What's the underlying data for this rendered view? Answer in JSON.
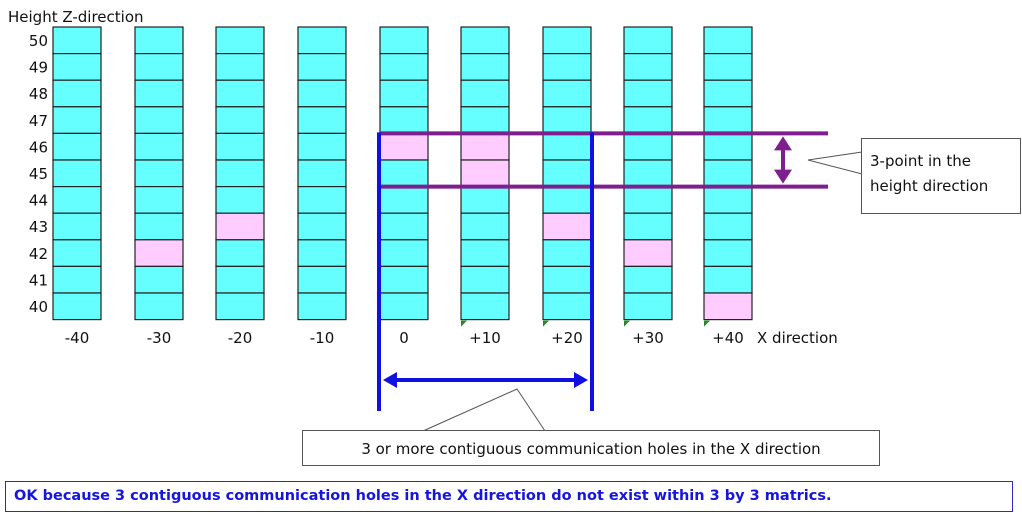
{
  "y_axis_label": "Height Z-direction",
  "x_axis_label": "X direction",
  "heights": [
    50,
    49,
    48,
    47,
    46,
    45,
    44,
    43,
    42,
    41,
    40
  ],
  "columns": [
    {
      "label": "-40",
      "highlighted": []
    },
    {
      "label": "-30",
      "highlighted": [
        42
      ]
    },
    {
      "label": "-20",
      "highlighted": [
        43
      ]
    },
    {
      "label": "-10",
      "highlighted": []
    },
    {
      "label": "0",
      "highlighted": [
        46
      ]
    },
    {
      "label": "+10",
      "highlighted": [
        46,
        45
      ]
    },
    {
      "label": "+20",
      "highlighted": [
        43
      ]
    },
    {
      "label": "+30",
      "highlighted": [
        42
      ]
    },
    {
      "label": "+40",
      "highlighted": [
        40
      ]
    }
  ],
  "colors": {
    "cell_normal": "#66ffff",
    "cell_highlight": "#ffccff",
    "height_band": "#7f1f8f",
    "x_window": "#1010e0",
    "marker": "#228b22"
  },
  "height_band": {
    "top": 46,
    "bottom": 44
  },
  "x_window": {
    "from": "0",
    "to": "+20"
  },
  "callouts": {
    "height": {
      "line1": "3-point in the",
      "line2": "height direction"
    },
    "x": "3 or more contiguous communication holes in the X direction"
  },
  "verdict": "OK because 3 contiguous communication holes in the X direction do not exist within 3 by 3 matrics."
}
